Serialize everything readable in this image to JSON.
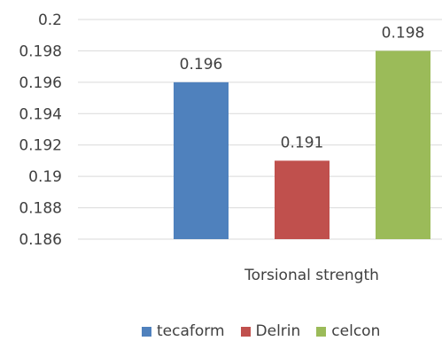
{
  "chart_data": {
    "type": "bar",
    "categories": [
      "Torsional strength"
    ],
    "xlabel": "",
    "ylabel": "",
    "ylim": [
      0.186,
      0.2
    ],
    "yticks": [
      "0.2",
      "0.198",
      "0.196",
      "0.194",
      "0.192",
      "0.19",
      "0.188",
      "0.186"
    ],
    "grid": true,
    "legend": "bottom",
    "series": [
      {
        "name": "tecaform",
        "values": [
          0.196
        ],
        "label": "0.196",
        "color": "#4F81BD"
      },
      {
        "name": "Delrin",
        "values": [
          0.191
        ],
        "label": "0.191",
        "color": "#C0504D"
      },
      {
        "name": "celcon",
        "values": [
          0.198
        ],
        "label": "0.198",
        "color": "#9BBB59"
      }
    ]
  }
}
